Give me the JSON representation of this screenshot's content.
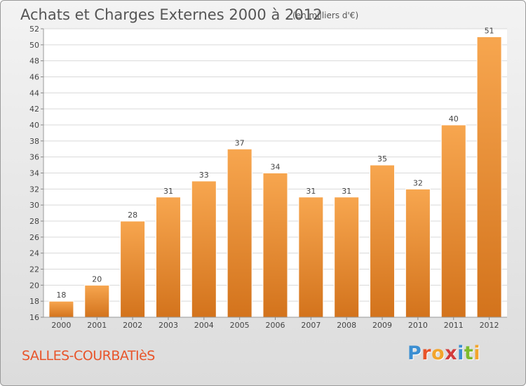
{
  "header": {
    "title": "Achats et Charges Externes 2000 à 2012",
    "subtitle": "(en milliers d'€)"
  },
  "footer": {
    "location": "SALLES-COURBATIèS",
    "logo_text": "Proxiti",
    "logo_colors": [
      "#3c8fd2",
      "#e8542a",
      "#f2a52c",
      "#d23c3c",
      "#3c8fd2",
      "#7dbb2d",
      "#f2a52c"
    ]
  },
  "colors": {
    "bar_top": "#f7a64f",
    "bar_bottom": "#d3731c",
    "grid": "#d9d9d9",
    "axis_text": "#444444",
    "location_text": "#e8542a"
  },
  "chart_data": {
    "type": "bar",
    "title": "Achats et Charges Externes 2000 à 2012",
    "subtitle": "(en milliers d'€)",
    "categories": [
      "2000",
      "2001",
      "2002",
      "2003",
      "2004",
      "2005",
      "2006",
      "2007",
      "2008",
      "2009",
      "2010",
      "2011",
      "2012"
    ],
    "values": [
      18,
      20,
      28,
      31,
      33,
      37,
      34,
      31,
      31,
      35,
      32,
      40,
      51
    ],
    "ylim": [
      16,
      52
    ],
    "ytick_step": 2,
    "grid": true,
    "data_labels": true
  }
}
